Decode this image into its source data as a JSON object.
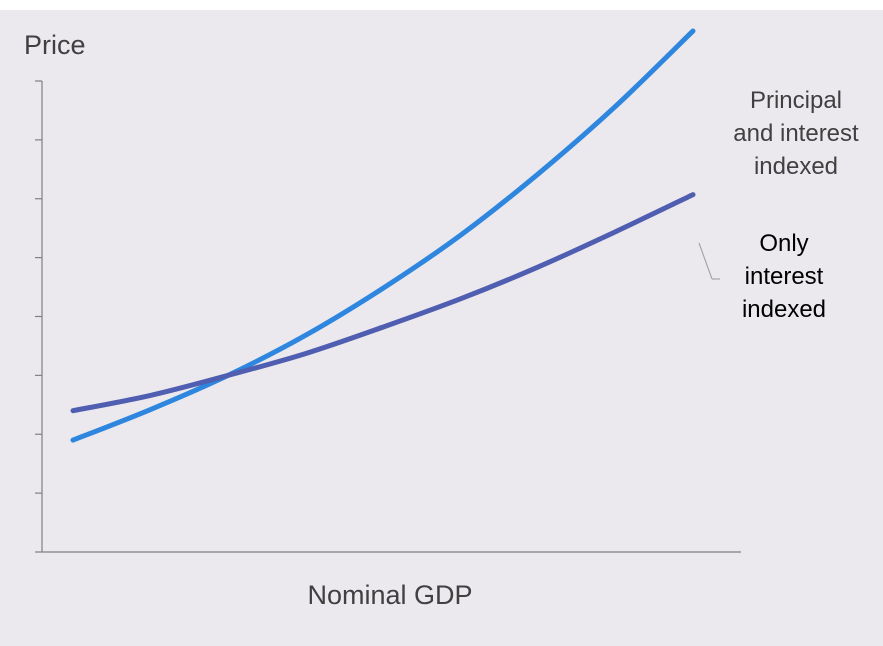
{
  "chart_data": {
    "type": "line",
    "xlabel": "Nominal GDP",
    "ylabel": "Price",
    "xlim": [
      0,
      10
    ],
    "ylim": [
      0,
      8
    ],
    "y_ticks_count": 8,
    "tick_labels_shown": false,
    "grid": false,
    "legend": "direct-labels-right",
    "series": [
      {
        "name": "Principal and interest indexed",
        "color": "#2e86de",
        "x": [
          0.5,
          1.75,
          3,
          4.25,
          5.5,
          6.75,
          8,
          9.25,
          10.5
        ],
        "y": [
          1.9,
          2.42,
          3.0,
          3.68,
          4.48,
          5.38,
          6.42,
          7.57,
          8.85
        ]
      },
      {
        "name": "Only interest indexed",
        "color": "#4f5eb0",
        "x": [
          0.5,
          1.75,
          3,
          4.25,
          5.5,
          6.75,
          8,
          9.25,
          10.5
        ],
        "y": [
          2.4,
          2.66,
          3.0,
          3.37,
          3.82,
          4.3,
          4.84,
          5.44,
          6.07
        ]
      }
    ]
  },
  "labels": {
    "principal": "Principal\nand interest\nindexed",
    "interest": "Only\ninterest\nindexed"
  }
}
